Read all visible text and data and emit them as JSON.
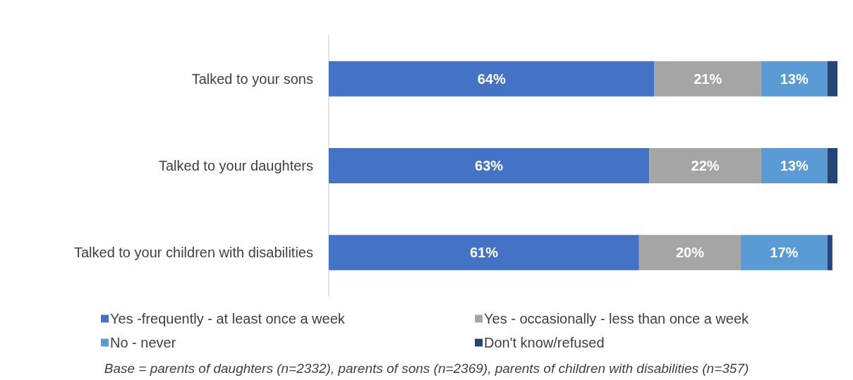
{
  "chart_data": {
    "type": "bar",
    "orientation": "horizontal",
    "stacked": true,
    "categories": [
      "Talked to your sons",
      "Talked to your daughters",
      "Talked to your children with disabilities"
    ],
    "series": [
      {
        "name": "Yes -frequently - at least once a week",
        "color": "#4472c4",
        "values": [
          64,
          63,
          61
        ],
        "value_labels": [
          "64%",
          "63%",
          "61%"
        ]
      },
      {
        "name": "Yes - occasionally - less than once a week",
        "color": "#a5a5a5",
        "values": [
          21,
          22,
          20
        ],
        "value_labels": [
          "21%",
          "22%",
          "20%"
        ]
      },
      {
        "name": "No - never",
        "color": "#5b9bd5",
        "values": [
          13,
          13,
          17
        ],
        "value_labels": [
          "13%",
          "13%",
          "17%"
        ]
      },
      {
        "name": "Don't know/refused",
        "color": "#264478",
        "values": [
          2,
          2,
          1
        ],
        "value_labels": [
          null,
          null,
          null
        ]
      }
    ],
    "xlim": [
      0,
      100
    ],
    "tick_labels": "y",
    "legend": "bottom",
    "annotations": [
      "Base = parents of daughters (n=2332), parents of sons (n=2369), parents of children with disabilities (n=357)"
    ]
  }
}
